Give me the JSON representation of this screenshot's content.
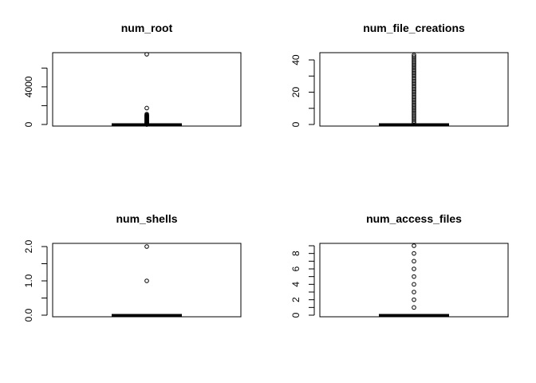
{
  "chart_data": [
    {
      "type": "box",
      "title": "num_root",
      "ylim": [
        0,
        7468
      ],
      "yticks": [
        0,
        4000
      ],
      "minor_ticks": [
        2000,
        6000
      ],
      "box": {
        "min": 0,
        "q1": 0,
        "median": 0,
        "q3": 0,
        "max": 0
      },
      "outliers": [
        7468,
        1743,
        1100,
        1000,
        950,
        900,
        850,
        800,
        750,
        700,
        650,
        600,
        550,
        500,
        450,
        400,
        350,
        300,
        250,
        200,
        150,
        120,
        100,
        80,
        60,
        50,
        40,
        30,
        20,
        10,
        5,
        1
      ]
    },
    {
      "type": "box",
      "title": "num_file_creations",
      "ylim": [
        0,
        43
      ],
      "yticks": [
        0,
        20,
        40
      ],
      "minor_ticks": [
        10,
        30
      ],
      "box": {
        "min": 0,
        "q1": 0,
        "median": 0,
        "q3": 0,
        "max": 0
      },
      "outliers": [
        43,
        42,
        41,
        40,
        39,
        38,
        37,
        36,
        35,
        34,
        33,
        32,
        31,
        30,
        29,
        28,
        27,
        26,
        25,
        24,
        23,
        22,
        21,
        20,
        19,
        18,
        17,
        16,
        15,
        14,
        13,
        12,
        11,
        10,
        9,
        8,
        7,
        6,
        5,
        4,
        3,
        2,
        1
      ]
    },
    {
      "type": "box",
      "title": "num_shells",
      "ylim": [
        0,
        2
      ],
      "yticks": [
        0.0,
        1.0,
        2.0
      ],
      "tick_format": 1,
      "minor_ticks": [
        0.5,
        1.5
      ],
      "box": {
        "min": 0,
        "q1": 0,
        "median": 0,
        "q3": 0,
        "max": 0
      },
      "outliers": [
        2,
        1
      ]
    },
    {
      "type": "box",
      "title": "num_access_files",
      "ylim": [
        0,
        9
      ],
      "yticks": [
        0,
        2,
        4,
        6,
        8
      ],
      "minor_ticks": [
        1,
        3,
        5,
        7,
        9
      ],
      "box": {
        "min": 0,
        "q1": 0,
        "median": 0,
        "q3": 0,
        "max": 0
      },
      "outliers": [
        9,
        8,
        7,
        6,
        5,
        4,
        3,
        2,
        1
      ]
    }
  ]
}
